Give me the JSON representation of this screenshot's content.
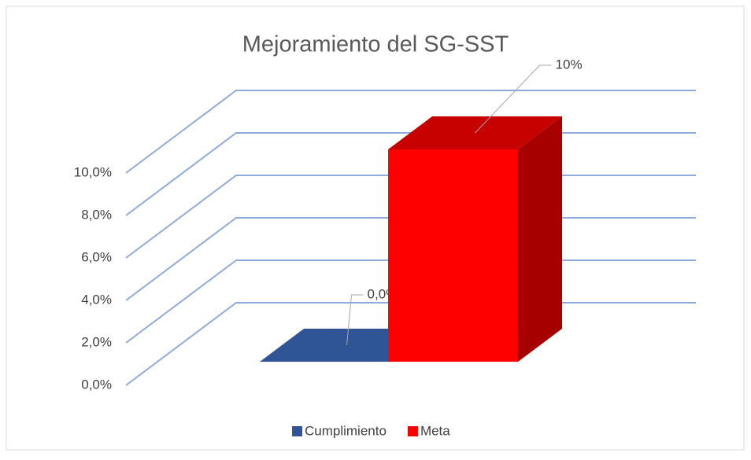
{
  "chart_data": {
    "type": "bar3d",
    "title": "Mejoramiento del SG-SST",
    "series": [
      {
        "name": "Cumplimiento",
        "color": "#2f5597",
        "values": [
          0
        ],
        "value_labels": [
          "0,0%"
        ]
      },
      {
        "name": "Meta",
        "color": "#ff0000",
        "values": [
          10
        ],
        "value_labels": [
          "10%"
        ]
      }
    ],
    "ylim": [
      0,
      10
    ],
    "yticks": [
      {
        "value": 0,
        "label": "0,0%"
      },
      {
        "value": 2,
        "label": "2,0%"
      },
      {
        "value": 4,
        "label": "4,0%"
      },
      {
        "value": 6,
        "label": "6,0%"
      },
      {
        "value": 8,
        "label": "8,0%"
      },
      {
        "value": 10,
        "label": "10,0%"
      }
    ],
    "grid": true,
    "legend": "bottom"
  }
}
